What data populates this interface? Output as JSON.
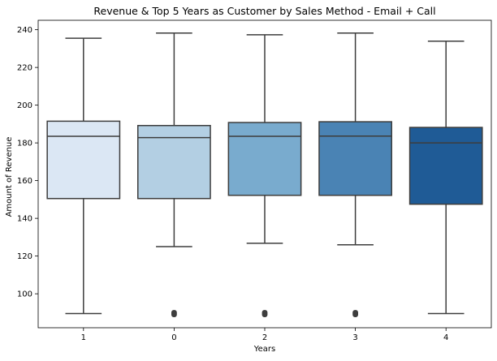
{
  "chart_data": {
    "type": "box",
    "title": "Revenue & Top 5 Years as Customer by Sales Method - Email + Call",
    "xlabel": "Years",
    "ylabel": "Amount of Revenue",
    "ylim": [
      82,
      245
    ],
    "yticks": [
      100,
      120,
      140,
      160,
      180,
      200,
      220,
      240
    ],
    "grid": false,
    "categories": [
      "1",
      "0",
      "2",
      "3",
      "4"
    ],
    "boxes": [
      {
        "category": "1",
        "whisker_low": 89.5,
        "q1": 150.5,
        "median": 183.5,
        "q3": 191.5,
        "whisker_high": 235.5,
        "outliers": [],
        "color": "#dbe7f4"
      },
      {
        "category": "0",
        "whisker_low": 125.0,
        "q1": 150.5,
        "median": 182.8,
        "q3": 189.2,
        "whisker_high": 238.2,
        "outliers": [
          89.5
        ],
        "color": "#b3cfe3"
      },
      {
        "category": "2",
        "whisker_low": 126.8,
        "q1": 152.2,
        "median": 183.5,
        "q3": 190.8,
        "whisker_high": 237.3,
        "outliers": [
          89.5
        ],
        "color": "#79abce"
      },
      {
        "category": "3",
        "whisker_low": 126.0,
        "q1": 152.2,
        "median": 183.6,
        "q3": 191.2,
        "whisker_high": 238.2,
        "outliers": [
          89.5
        ],
        "color": "#4a83b4"
      },
      {
        "category": "4",
        "whisker_low": 89.5,
        "q1": 147.5,
        "median": 180.0,
        "q3": 188.2,
        "whisker_high": 233.9,
        "outliers": [],
        "color": "#1f5b96"
      }
    ]
  }
}
